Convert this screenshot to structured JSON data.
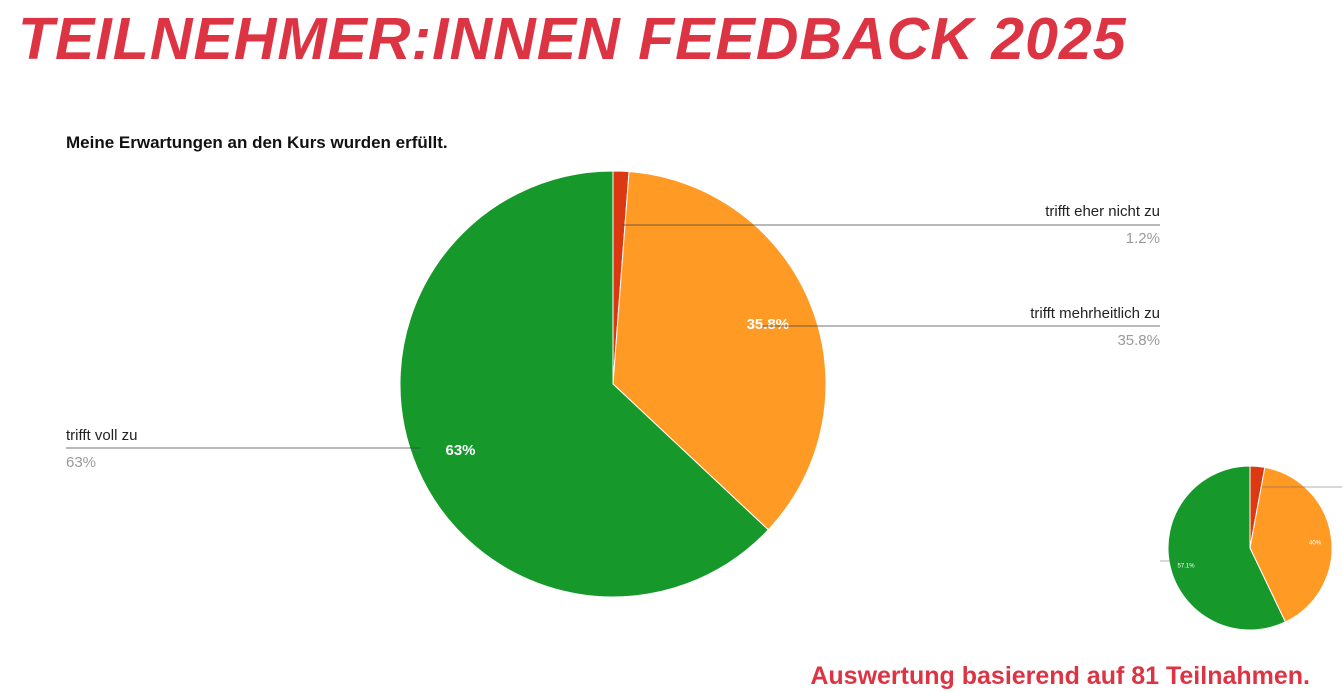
{
  "page": {
    "heading": "TEILNEHMER:INNEN FEEDBACK 2025",
    "footer": "Auswertung basierend auf 81 Teilnahmen.",
    "accent_color": "#dd3444"
  },
  "chart_data": [
    {
      "type": "pie",
      "title": "Meine Erwartungen an den Kurs wurden erfüllt.",
      "slices": [
        {
          "label": "trifft eher nicht zu",
          "value": 1.2,
          "display": "1.2%",
          "color": "#dc3912"
        },
        {
          "label": "trifft mehrheitlich zu",
          "value": 35.8,
          "display": "35.8%",
          "slice_label": "35.8%",
          "color": "#ff9a25"
        },
        {
          "label": "trifft voll zu",
          "value": 63,
          "display": "63%",
          "slice_label": "63%",
          "color": "#16982b"
        }
      ],
      "legend": "callouts"
    },
    {
      "type": "pie",
      "title": "",
      "slices": [
        {
          "label": "",
          "value": 2.9,
          "color": "#dc3912"
        },
        {
          "label": "",
          "value": 40,
          "slice_label": "40%",
          "color": "#ff9a25"
        },
        {
          "label": "",
          "value": 57.1,
          "slice_label": "57.1%",
          "color": "#16982b"
        }
      ],
      "partially_visible": true
    }
  ]
}
